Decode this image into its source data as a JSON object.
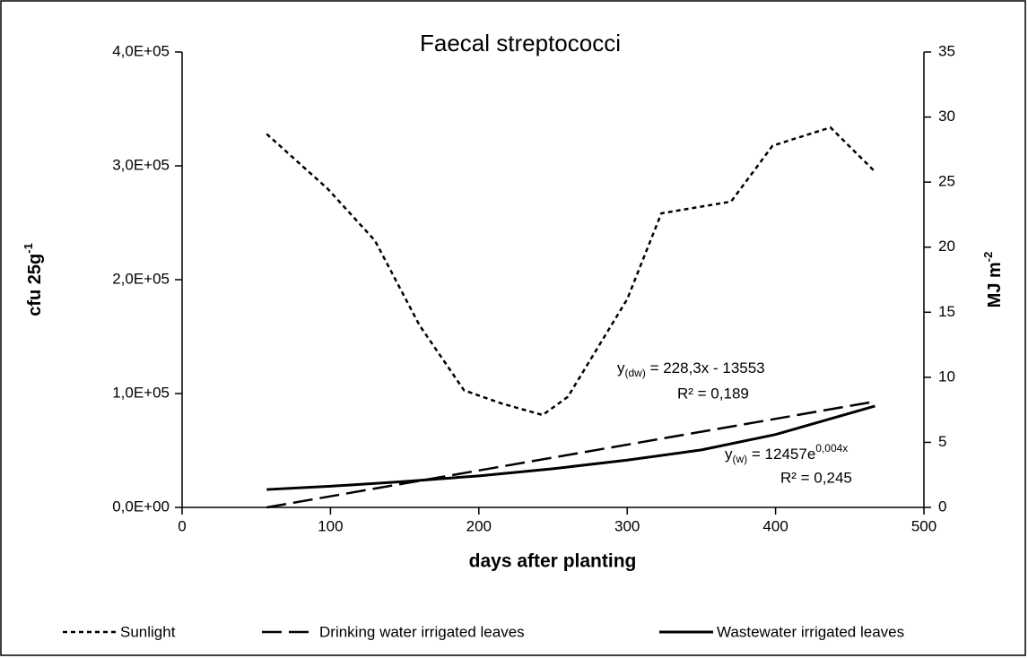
{
  "chart_data": {
    "type": "line",
    "title": "Faecal streptococci",
    "x_label": "days after planting",
    "y_label": {
      "text": "cfu 25g",
      "sup": "-1"
    },
    "y2_label": {
      "text": "MJ m",
      "sup": "-2"
    },
    "xlim": [
      0,
      500
    ],
    "xticks": [
      0,
      100,
      200,
      300,
      400,
      500
    ],
    "ylim": [
      0,
      400000
    ],
    "yticks": [
      {
        "value": 0,
        "label": "0,0E+00"
      },
      {
        "value": 100000,
        "label": "1,0E+05"
      },
      {
        "value": 200000,
        "label": "2,0E+05"
      },
      {
        "value": 300000,
        "label": "3,0E+05"
      },
      {
        "value": 400000,
        "label": "4,0E+05"
      }
    ],
    "y2lim": [
      0,
      35
    ],
    "y2ticks": [
      0,
      5,
      10,
      15,
      20,
      25,
      30,
      35
    ],
    "series": [
      {
        "name": "Sunlight",
        "color": "#000000",
        "dash": "short",
        "axis": "y2",
        "x": [
          57,
          98,
          130,
          160,
          190,
          215,
          243,
          260,
          300,
          323,
          370,
          398,
          437,
          467
        ],
        "values": [
          28.7,
          24.5,
          20.5,
          14,
          9,
          8,
          7.1,
          8.5,
          16,
          22.6,
          23.5,
          27.8,
          29.2,
          25.8
        ]
      },
      {
        "name": "Drinking water irrigated leaves",
        "color": "#000000",
        "dash": "long",
        "axis": "y",
        "x": [
          57,
          467
        ],
        "values": [
          0,
          93000
        ]
      },
      {
        "name": "Wastewater irrigated leaves",
        "color": "#000000",
        "dash": "solid",
        "axis": "y",
        "x": [
          57,
          100,
          150,
          200,
          250,
          300,
          350,
          400,
          467
        ],
        "values": [
          15700,
          18600,
          22700,
          27700,
          34000,
          41500,
          50500,
          64000,
          89000
        ]
      }
    ],
    "annotations": [
      {
        "y": "y",
        "sub": "(dw)",
        "eq": " = 228,3x - 13553",
        "r2": "R² = 0,189"
      },
      {
        "y": "y",
        "sub": "(w)",
        "eq": " = 12457e",
        "sup": "0,004x",
        "r2": "R² = 0,245"
      }
    ]
  }
}
